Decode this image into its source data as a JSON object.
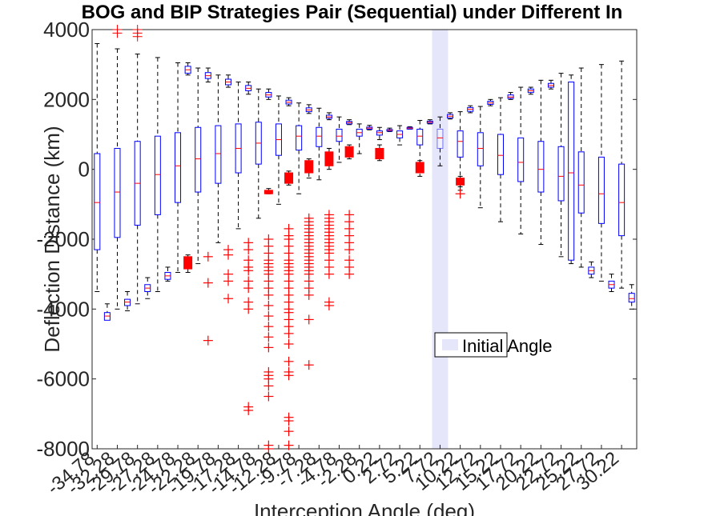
{
  "chart_data": {
    "type": "boxplot",
    "title": "BOG and BIP Strategies Pair (Sequential) under Different In",
    "xlabel": "Interception Angle (deg)",
    "ylabel": "Deflection Distance (km)",
    "ylim": [
      -8000,
      4000
    ],
    "yticks": [
      4000,
      2000,
      0,
      -2000,
      -4000,
      -6000,
      -8000
    ],
    "ytick_labels": [
      "4000",
      "2000",
      "0",
      "-2000",
      "-4000",
      "-6000",
      "-8000"
    ],
    "xtick_labels": [
      "-34.78",
      "-32.28",
      "-29.78",
      "-27.28",
      "-24.78",
      "-22.28",
      "-19.78",
      "-17.28",
      "-14.78",
      "-12.28",
      "-9.78",
      "-7.28",
      "-4.78",
      "-2.28",
      "0.22",
      "2.72",
      "5.22",
      "7.72",
      "10.22",
      "12.72",
      "15.22",
      "17.72",
      "20.22",
      "22.72",
      "25.22",
      "27.72",
      "30.22"
    ],
    "legend": {
      "label": "Initial Angle",
      "position": "center-right"
    },
    "initial_angle_index": 17,
    "colors": {
      "blue_series": "#0000ff",
      "red_series": "#ff0000",
      "highlight": "#e6e6fa",
      "median": "#ff0000"
    },
    "blue_series": [
      {
        "x": 0,
        "wlo": -3500,
        "q1": -2300,
        "med": -950,
        "q3": 450,
        "whi": 3600
      },
      {
        "x": 1,
        "wlo": -4300,
        "q1": -4320,
        "med": -4200,
        "q3": -4100,
        "whi": -3850
      },
      {
        "x": 2,
        "wlo": -4000,
        "q1": -1950,
        "med": -650,
        "q3": 600,
        "whi": 3450
      },
      {
        "x": 3,
        "wlo": -4050,
        "q1": -3900,
        "med": -3800,
        "q3": -3720,
        "whi": -3500
      },
      {
        "x": 4,
        "wlo": -3850,
        "q1": -1600,
        "med": -400,
        "q3": 800,
        "whi": 3300
      },
      {
        "x": 5,
        "wlo": -3700,
        "q1": -3500,
        "med": -3400,
        "q3": -3300,
        "whi": -3100
      },
      {
        "x": 6,
        "wlo": -3500,
        "q1": -1300,
        "med": -150,
        "q3": 950,
        "whi": 3200
      },
      {
        "x": 7,
        "wlo": -3200,
        "q1": -3150,
        "med": -3050,
        "q3": -2950,
        "whi": -2800
      },
      {
        "x": 8,
        "wlo": -2950,
        "q1": -950,
        "med": 100,
        "q3": 1050,
        "whi": 3050
      },
      {
        "x": 9,
        "wlo": 2700,
        "q1": 2750,
        "med": 2850,
        "q3": 2950,
        "whi": 3050
      },
      {
        "x": 10,
        "wlo": -2700,
        "q1": -650,
        "med": 300,
        "q3": 1200,
        "whi": 2900
      },
      {
        "x": 11,
        "wlo": 2500,
        "q1": 2600,
        "med": 2680,
        "q3": 2770,
        "whi": 2900
      },
      {
        "x": 12,
        "wlo": -2100,
        "q1": -400,
        "med": 450,
        "q3": 1250,
        "whi": 2700
      },
      {
        "x": 13,
        "wlo": 2350,
        "q1": 2420,
        "med": 2500,
        "q3": 2580,
        "whi": 2700
      },
      {
        "x": 14,
        "wlo": -1700,
        "q1": -100,
        "med": 600,
        "q3": 1300,
        "whi": 2500
      },
      {
        "x": 15,
        "wlo": 2150,
        "q1": 2250,
        "med": 2320,
        "q3": 2400,
        "whi": 2500
      },
      {
        "x": 16,
        "wlo": -1400,
        "q1": 150,
        "med": 750,
        "q3": 1350,
        "whi": 2300
      },
      {
        "x": 17,
        "wlo": 2000,
        "q1": 2070,
        "med": 2130,
        "q3": 2200,
        "whi": 2300
      },
      {
        "x": 18,
        "wlo": -1000,
        "q1": 400,
        "med": 850,
        "q3": 1300,
        "whi": 2100
      },
      {
        "x": 19,
        "wlo": 1820,
        "q1": 1870,
        "med": 1920,
        "q3": 1980,
        "whi": 2050
      },
      {
        "x": 20,
        "wlo": -700,
        "q1": 550,
        "med": 950,
        "q3": 1250,
        "whi": 1900
      },
      {
        "x": 21,
        "wlo": 1600,
        "q1": 1650,
        "med": 1700,
        "q3": 1760,
        "whi": 1850
      },
      {
        "x": 22,
        "wlo": -300,
        "q1": 650,
        "med": 950,
        "q3": 1200,
        "whi": 1750
      },
      {
        "x": 23,
        "wlo": 1420,
        "q1": 1460,
        "med": 1500,
        "q3": 1550,
        "whi": 1620
      },
      {
        "x": 24,
        "wlo": 200,
        "q1": 800,
        "med": 950,
        "q3": 1150,
        "whi": 1500
      },
      {
        "x": 25,
        "wlo": 1280,
        "q1": 1300,
        "med": 1340,
        "q3": 1370,
        "whi": 1420
      },
      {
        "x": 26,
        "wlo": 450,
        "q1": 950,
        "med": 1050,
        "q3": 1150,
        "whi": 1300
      },
      {
        "x": 27,
        "wlo": 1130,
        "q1": 1150,
        "med": 1180,
        "q3": 1210,
        "whi": 1260
      },
      {
        "x": 28,
        "wlo": 850,
        "q1": 980,
        "med": 1050,
        "q3": 1100,
        "whi": 1200
      },
      {
        "x": 29,
        "wlo": 1080,
        "q1": 1100,
        "med": 1120,
        "q3": 1140,
        "whi": 1180
      },
      {
        "x": 30,
        "wlo": 700,
        "q1": 900,
        "med": 1000,
        "q3": 1100,
        "whi": 1250
      },
      {
        "x": 31,
        "wlo": 1150,
        "q1": 1160,
        "med": 1180,
        "q3": 1200,
        "whi": 1220
      },
      {
        "x": 32,
        "wlo": -200,
        "q1": 700,
        "med": 950,
        "q3": 1150,
        "whi": 1400
      },
      {
        "x": 33,
        "wlo": 1300,
        "q1": 1320,
        "med": 1350,
        "q3": 1380,
        "whi": 1420
      },
      {
        "x": 34,
        "wlo": 100,
        "q1": 600,
        "med": 900,
        "q3": 1150,
        "whi": 1500
      },
      {
        "x": 35,
        "wlo": 1440,
        "q1": 1470,
        "med": 1520,
        "q3": 1570,
        "whi": 1620
      },
      {
        "x": 36,
        "wlo": -600,
        "q1": 350,
        "med": 800,
        "q3": 1100,
        "whi": 1650
      },
      {
        "x": 37,
        "wlo": 1620,
        "q1": 1660,
        "med": 1720,
        "q3": 1770,
        "whi": 1820
      },
      {
        "x": 38,
        "wlo": -1100,
        "q1": 100,
        "med": 600,
        "q3": 1050,
        "whi": 1800
      },
      {
        "x": 39,
        "wlo": 1820,
        "q1": 1860,
        "med": 1900,
        "q3": 1950,
        "whi": 2000
      },
      {
        "x": 40,
        "wlo": -1500,
        "q1": -150,
        "med": 400,
        "q3": 1000,
        "whi": 2050
      },
      {
        "x": 41,
        "wlo": 2000,
        "q1": 2030,
        "med": 2070,
        "q3": 2130,
        "whi": 2200
      },
      {
        "x": 42,
        "wlo": -1850,
        "q1": -350,
        "med": 200,
        "q3": 900,
        "whi": 2350
      },
      {
        "x": 43,
        "wlo": 2150,
        "q1": 2200,
        "med": 2250,
        "q3": 2300,
        "whi": 2350
      },
      {
        "x": 44,
        "wlo": -2150,
        "q1": -650,
        "med": 0,
        "q3": 800,
        "whi": 2550
      },
      {
        "x": 45,
        "wlo": 2300,
        "q1": 2350,
        "med": 2400,
        "q3": 2460,
        "whi": 2550
      },
      {
        "x": 46,
        "wlo": -2500,
        "q1": -900,
        "med": -200,
        "q3": 650,
        "whi": 2750
      },
      {
        "x": 47,
        "wlo": -2700,
        "q1": -2600,
        "med": -100,
        "q3": 2500,
        "whi": 2700
      },
      {
        "x": 48,
        "wlo": -2800,
        "q1": -1250,
        "med": -450,
        "q3": 500,
        "whi": 2900
      },
      {
        "x": 49,
        "wlo": -3100,
        "q1": -3000,
        "med": -2900,
        "q3": -2800,
        "whi": -2650
      },
      {
        "x": 50,
        "wlo": -3200,
        "q1": -1550,
        "med": -700,
        "q3": 350,
        "whi": 3000
      },
      {
        "x": 51,
        "wlo": -3500,
        "q1": -3400,
        "med": -3300,
        "q3": -3200,
        "whi": -3000
      },
      {
        "x": 52,
        "wlo": -3400,
        "q1": -1900,
        "med": -950,
        "q3": 150,
        "whi": 3100
      },
      {
        "x": 53,
        "wlo": -4000,
        "q1": -3800,
        "med": -3700,
        "q3": -3550,
        "whi": -3300
      }
    ],
    "red_series": [
      {
        "x": 9,
        "wlo": -2950,
        "q1": -2850,
        "med": -2700,
        "q3": -2500,
        "whi": -2450,
        "outliers": []
      },
      {
        "x": 11,
        "wlo": null,
        "q1": null,
        "med": null,
        "q3": null,
        "whi": null,
        "outliers": [
          -2500,
          -3250,
          -4900
        ]
      },
      {
        "x": 13,
        "wlo": null,
        "q1": null,
        "med": null,
        "q3": null,
        "whi": null,
        "outliers": [
          -2300,
          -2450,
          -3000,
          -3200,
          -3700
        ]
      },
      {
        "x": 15,
        "wlo": null,
        "q1": null,
        "med": null,
        "q3": null,
        "whi": null,
        "outliers": [
          -2100,
          -2300,
          -2600,
          -2800,
          -2900,
          -3200,
          -3400,
          -3800,
          -4000,
          -6800,
          -6900
        ]
      },
      {
        "x": 17,
        "wlo": -700,
        "q1": -700,
        "med": -650,
        "q3": -600,
        "whi": -550,
        "outliers": [
          -2000,
          -2200,
          -2400,
          -2600,
          -2700,
          -2800,
          -2900,
          -3000,
          -3200,
          -3400,
          -3600,
          -3900,
          -4200,
          -4500,
          -4800,
          -5100,
          -5800,
          -5900,
          -6000,
          -6200,
          -6500,
          -7900,
          -8000
        ]
      },
      {
        "x": 19,
        "wlo": -450,
        "q1": -400,
        "med": -250,
        "q3": -100,
        "whi": -50,
        "outliers": [
          -1700,
          -1900,
          -2000,
          -2200,
          -2400,
          -2600,
          -2700,
          -2800,
          -2900,
          -3000,
          -3200,
          -3400,
          -3600,
          -3800,
          -4000,
          -4100,
          -4300,
          -4500,
          -4700,
          -5000,
          -5500,
          -5800,
          -5900,
          -7100,
          -7200,
          -7500,
          -7900
        ]
      },
      {
        "x": 21,
        "wlo": -250,
        "q1": -100,
        "med": 100,
        "q3": 250,
        "whi": 300,
        "outliers": [
          -1400,
          -1500,
          -1600,
          -1700,
          -1800,
          -1900,
          -2000,
          -2100,
          -2200,
          -2300,
          -2400,
          -2500,
          -2600,
          -2700,
          -2800,
          -2900,
          -3000,
          -3200,
          -3400,
          -3600,
          -4300,
          -5600
        ]
      },
      {
        "x": 23,
        "wlo": 0,
        "q1": 100,
        "med": 350,
        "q3": 500,
        "whi": 600,
        "outliers": [
          -1300,
          -1400,
          -1500,
          -1600,
          -1700,
          -1800,
          -1900,
          -2000,
          -2100,
          -2200,
          -2300,
          -2400,
          -2600,
          -2800,
          -3000,
          -3800,
          -3900
        ]
      },
      {
        "x": 25,
        "wlo": 300,
        "q1": 350,
        "med": 450,
        "q3": 650,
        "whi": 700,
        "outliers": [
          -1300,
          -1500,
          -1700,
          -1900,
          -2100,
          -2300,
          -2600,
          -2800,
          -3000
        ]
      },
      {
        "x": 28,
        "wlo": 250,
        "q1": 300,
        "med": 450,
        "q3": 600,
        "whi": 700,
        "outliers": []
      },
      {
        "x": 32,
        "wlo": 0,
        "q1": -100,
        "med": 100,
        "q3": 200,
        "whi": 250,
        "outliers": []
      },
      {
        "x": 36,
        "wlo": -500,
        "q1": -450,
        "med": -350,
        "q3": -250,
        "whi": -200,
        "outliers": [
          -700
        ]
      }
    ]
  }
}
